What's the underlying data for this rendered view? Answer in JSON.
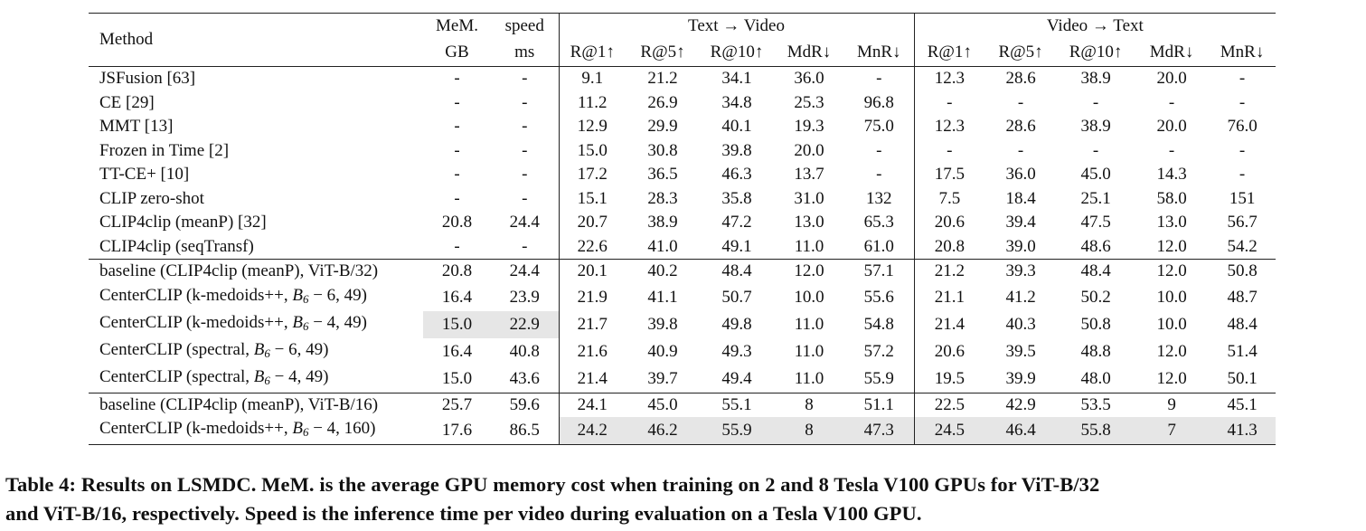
{
  "header": {
    "method": "Method",
    "mem_line1": "MeM.",
    "mem_line2": "GB",
    "speed_line1": "speed",
    "speed_line2": "ms",
    "t2v_group": "Text → Video",
    "v2t_group": "Video → Text",
    "metric_cols": [
      "R@1↑",
      "R@5↑",
      "R@10↑",
      "MdR↓",
      "MnR↓"
    ]
  },
  "groups": [
    {
      "rows": [
        {
          "method": "JSFusion [63]",
          "mem": "-",
          "speed": "-",
          "t2v": [
            "9.1",
            "21.2",
            "34.1",
            "36.0",
            "-"
          ],
          "v2t": [
            "12.3",
            "28.6",
            "38.9",
            "20.0",
            "-"
          ]
        },
        {
          "method": "CE [29]",
          "mem": "-",
          "speed": "-",
          "t2v": [
            "11.2",
            "26.9",
            "34.8",
            "25.3",
            "96.8"
          ],
          "v2t": [
            "-",
            "-",
            "-",
            "-",
            "-"
          ]
        },
        {
          "method": "MMT [13]",
          "mem": "-",
          "speed": "-",
          "t2v": [
            "12.9",
            "29.9",
            "40.1",
            "19.3",
            "75.0"
          ],
          "v2t": [
            "12.3",
            "28.6",
            "38.9",
            "20.0",
            "76.0"
          ]
        },
        {
          "method": "Frozen in Time [2]",
          "mem": "-",
          "speed": "-",
          "t2v": [
            "15.0",
            "30.8",
            "39.8",
            "20.0",
            "-"
          ],
          "v2t": [
            "-",
            "-",
            "-",
            "-",
            "-"
          ]
        },
        {
          "method": "TT-CE+ [10]",
          "mem": "-",
          "speed": "-",
          "t2v": [
            "17.2",
            "36.5",
            "46.3",
            "13.7",
            "-"
          ],
          "v2t": [
            "17.5",
            "36.0",
            "45.0",
            "14.3",
            "-"
          ]
        },
        {
          "method": "CLIP zero-shot",
          "mem": "-",
          "speed": "-",
          "t2v": [
            "15.1",
            "28.3",
            "35.8",
            "31.0",
            "132"
          ],
          "v2t": [
            "7.5",
            "18.4",
            "25.1",
            "58.0",
            "151"
          ]
        },
        {
          "method": "CLIP4clip (meanP) [32]",
          "mem": "20.8",
          "speed": "24.4",
          "t2v": [
            "20.7",
            "38.9",
            "47.2",
            "13.0",
            "65.3"
          ],
          "v2t": [
            "20.6",
            "39.4",
            "47.5",
            "13.0",
            "56.7"
          ]
        },
        {
          "method": "CLIP4clip (seqTransf)",
          "mem": "-",
          "speed": "-",
          "t2v": [
            "22.6",
            "41.0",
            "49.1",
            "11.0",
            "61.0"
          ],
          "v2t": [
            "20.8",
            "39.0",
            "48.6",
            "12.0",
            "54.2"
          ]
        }
      ]
    },
    {
      "rows": [
        {
          "method": "baseline (CLIP4clip (meanP), ViT-B/32)",
          "mem": "20.8",
          "speed": "24.4",
          "t2v": [
            "20.1",
            "40.2",
            "48.4",
            "12.0",
            "57.1"
          ],
          "v2t": [
            "21.2",
            "39.3",
            "48.4",
            "12.0",
            "50.8"
          ]
        },
        {
          "method_prefix": "CenterCLIP (k-medoids++, ",
          "method_b": "B",
          "method_sub": "6",
          "method_suffix": " − 6, 49)",
          "mem": "16.4",
          "speed": "23.9",
          "t2v": [
            "21.9",
            "41.1",
            "50.7",
            "10.0",
            "55.6"
          ],
          "v2t": [
            "21.1",
            "41.2",
            "50.2",
            "10.0",
            "48.7"
          ]
        },
        {
          "method_prefix": "CenterCLIP (k-medoids++, ",
          "method_b": "B",
          "method_sub": "6",
          "method_suffix": " − 4, 49)",
          "mem": "15.0",
          "speed": "22.9",
          "t2v": [
            "21.7",
            "39.8",
            "49.8",
            "11.0",
            "54.8"
          ],
          "v2t": [
            "21.4",
            "40.3",
            "50.8",
            "10.0",
            "48.4"
          ]
        },
        {
          "method_prefix": "CenterCLIP (spectral, ",
          "method_b": "B",
          "method_sub": "6",
          "method_suffix": " − 6, 49)",
          "mem": "16.4",
          "speed": "40.8",
          "t2v": [
            "21.6",
            "40.9",
            "49.3",
            "11.0",
            "57.2"
          ],
          "v2t": [
            "20.6",
            "39.5",
            "48.8",
            "12.0",
            "51.4"
          ]
        },
        {
          "method_prefix": "CenterCLIP (spectral, ",
          "method_b": "B",
          "method_sub": "6",
          "method_suffix": " − 4, 49)",
          "mem": "15.0",
          "speed": "43.6",
          "t2v": [
            "21.4",
            "39.7",
            "49.4",
            "11.0",
            "55.9"
          ],
          "v2t": [
            "19.5",
            "39.9",
            "48.0",
            "12.0",
            "50.1"
          ]
        }
      ]
    },
    {
      "rows": [
        {
          "method": "baseline (CLIP4clip (meanP), ViT-B/16)",
          "mem": "25.7",
          "speed": "59.6",
          "t2v": [
            "24.1",
            "45.0",
            "55.1",
            "8",
            "51.1"
          ],
          "v2t": [
            "22.5",
            "42.9",
            "53.5",
            "9",
            "45.1"
          ]
        },
        {
          "method_prefix": "CenterCLIP (k-medoids++, ",
          "method_b": "B",
          "method_sub": "6",
          "method_suffix": " − 4, 160)",
          "mem": "17.6",
          "speed": "86.5",
          "t2v": [
            "24.2",
            "46.2",
            "55.9",
            "8",
            "47.3"
          ],
          "v2t": [
            "24.5",
            "46.4",
            "55.8",
            "7",
            "41.3"
          ]
        }
      ]
    }
  ],
  "caption": {
    "line1": "Table 4: Results on LSMDC. MeM. is the average GPU memory cost when training on 2 and 8 Tesla V100 GPUs for ViT-B/32",
    "line2": "and ViT-B/16, respectively. Speed is the inference time per video during evaluation on a Tesla V100 GPU."
  }
}
